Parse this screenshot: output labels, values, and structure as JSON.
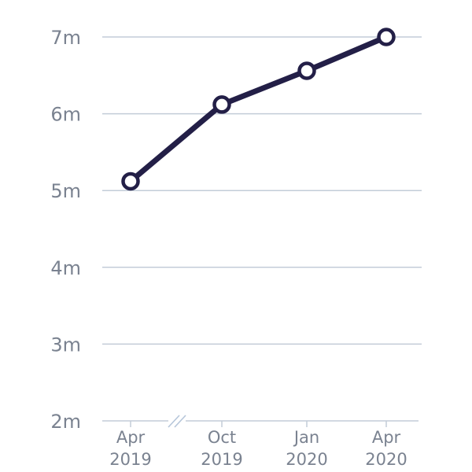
{
  "chart_data": {
    "type": "line",
    "x": [
      "Apr 2019",
      "Oct 2019",
      "Jan 2020",
      "Apr 2020"
    ],
    "x_tick_labels": [
      [
        "Apr",
        "2019"
      ],
      [
        "Oct",
        "2019"
      ],
      [
        "Jan",
        "2020"
      ],
      [
        "Apr",
        "2020"
      ]
    ],
    "series": [
      {
        "values": [
          5.12,
          6.12,
          6.56,
          7.0
        ],
        "color": "#231f47"
      }
    ],
    "y_unit_suffix": "m",
    "yticks": [
      2,
      3,
      4,
      5,
      6,
      7
    ],
    "ytick_labels": [
      "2m",
      "3m",
      "4m",
      "5m",
      "6m",
      "7m"
    ],
    "ylim": [
      2,
      7
    ],
    "grid": true,
    "x_axis_break": "between Apr 2019 and Oct 2019",
    "marker": "open-circle",
    "colors": {
      "line": "#231f47",
      "marker_fill": "#ffffff",
      "grid": "#c3ccd8",
      "tick_text": "#7a8290",
      "break_mark": "#b6c6da"
    }
  }
}
